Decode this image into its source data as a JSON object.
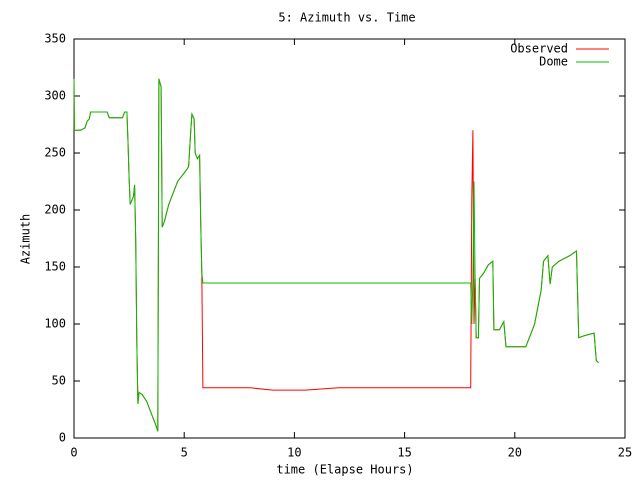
{
  "chart_data": {
    "type": "line",
    "title": "5: Azimuth vs. Time",
    "x_label": "time (Elapse Hours)",
    "y_label": "Azimuth",
    "x": [
      0,
      0.02,
      0.3,
      0.5,
      0.6,
      0.7,
      0.75,
      1.5,
      1.6,
      2.2,
      2.3,
      2.4,
      2.45,
      2.5,
      2.55,
      2.7,
      2.75,
      2.8,
      2.85,
      2.9,
      2.95,
      3.1,
      3.3,
      3.5,
      3.7,
      3.8,
      3.85,
      3.95,
      4.0,
      4.1,
      4.3,
      4.5,
      4.7,
      4.9,
      5.1,
      5.2,
      5.3,
      5.35,
      5.45,
      5.5,
      5.6,
      5.7,
      5.75,
      5.8,
      5.85,
      8.0,
      9.0,
      10.5,
      12.0,
      18.0,
      18.05,
      18.1,
      18.15,
      18.2,
      18.25,
      18.35,
      18.4,
      18.6,
      18.8,
      19.0,
      19.05,
      19.3,
      19.5,
      19.6,
      20.5,
      20.7,
      20.9,
      21.0,
      21.2,
      21.3,
      21.5,
      21.6,
      21.7,
      22.0,
      22.5,
      22.8,
      22.9,
      23.2,
      23.6,
      23.7,
      23.8
    ],
    "series": [
      {
        "name": "Observed",
        "color": "#ff0000",
        "values": [
          315,
          270,
          270,
          272,
          278,
          280,
          286,
          286,
          281,
          281,
          286,
          286,
          260,
          228,
          205,
          212,
          222,
          175,
          85,
          30,
          40,
          38,
          32,
          22,
          12,
          6,
          315,
          308,
          185,
          190,
          205,
          215,
          225,
          230,
          235,
          238,
          270,
          284,
          280,
          250,
          245,
          248,
          190,
          145,
          44,
          44,
          42,
          42,
          44,
          44,
          210,
          270,
          100,
          140,
          88,
          88,
          140,
          145,
          152,
          155,
          95,
          95,
          102,
          80,
          80,
          90,
          100,
          110,
          130,
          155,
          160,
          135,
          150,
          155,
          160,
          164,
          88,
          90,
          92,
          68,
          66
        ]
      },
      {
        "name": "Dome",
        "color": "#00c000",
        "values": [
          315,
          270,
          270,
          272,
          278,
          280,
          286,
          286,
          281,
          281,
          286,
          286,
          260,
          228,
          205,
          212,
          222,
          175,
          85,
          30,
          40,
          38,
          32,
          22,
          12,
          6,
          315,
          308,
          185,
          190,
          205,
          215,
          225,
          230,
          235,
          238,
          270,
          284,
          280,
          250,
          245,
          248,
          190,
          145,
          136,
          136,
          136,
          136,
          136,
          136,
          100,
          140,
          225,
          140,
          88,
          88,
          140,
          145,
          152,
          155,
          95,
          95,
          102,
          80,
          80,
          90,
          100,
          110,
          130,
          155,
          160,
          135,
          150,
          155,
          160,
          164,
          88,
          90,
          92,
          68,
          66
        ]
      }
    ],
    "xlim": [
      0,
      25
    ],
    "xticks": [
      0,
      5,
      10,
      15,
      20,
      25
    ],
    "ylim": [
      0,
      350
    ],
    "yticks": [
      0,
      50,
      100,
      150,
      200,
      250,
      300,
      350
    ],
    "grid": false,
    "legend": "top-right"
  }
}
